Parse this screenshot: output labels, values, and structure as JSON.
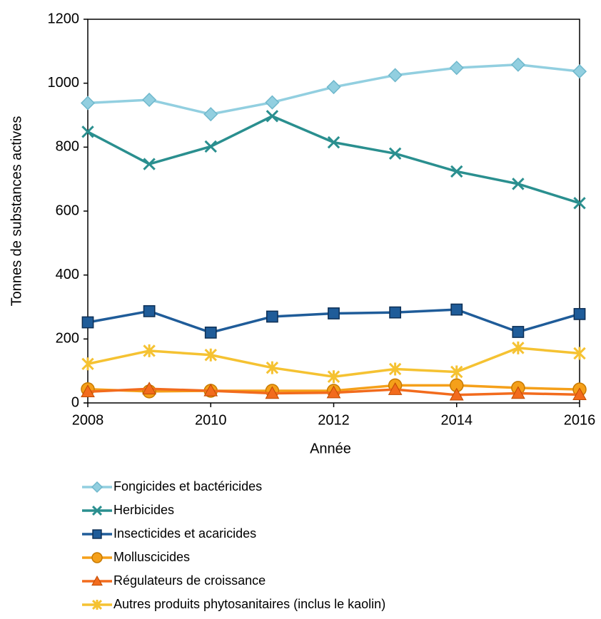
{
  "chart_data": {
    "type": "line",
    "x_label": "Année",
    "y_label": "Tonnes de substances actives",
    "x": [
      2008,
      2009,
      2010,
      2011,
      2012,
      2013,
      2014,
      2015,
      2016
    ],
    "xlim": [
      2008,
      2016
    ],
    "xticks": [
      2008,
      2010,
      2012,
      2014,
      2016
    ],
    "ylim": [
      0,
      1200
    ],
    "yticks": [
      0,
      200,
      400,
      600,
      800,
      1000,
      1200
    ],
    "legend": "bottom",
    "series": [
      {
        "name": "Fongicides et bactéricides",
        "color": "#92cfe0",
        "marker": "diamond",
        "values": [
          938,
          948,
          903,
          940,
          988,
          1025,
          1048,
          1058,
          1037
        ]
      },
      {
        "name": "Herbicides",
        "color": "#2a8f8f",
        "marker": "x",
        "values": [
          848,
          747,
          802,
          897,
          815,
          780,
          724,
          685,
          625
        ]
      },
      {
        "name": "Insecticides et acaricides",
        "color": "#1f5c99",
        "marker": "square",
        "values": [
          252,
          287,
          220,
          270,
          280,
          283,
          292,
          222,
          278
        ]
      },
      {
        "name": "Molluscicides",
        "color": "#f5a01a",
        "marker": "circle",
        "values": [
          43,
          36,
          38,
          38,
          38,
          55,
          55,
          47,
          42
        ]
      },
      {
        "name": "Régulateurs de croissance",
        "color": "#f26b1d",
        "marker": "triangle",
        "values": [
          35,
          44,
          38,
          30,
          32,
          42,
          25,
          30,
          26
        ]
      },
      {
        "name": "Autres produits phytosanitaires (inclus le kaolin)",
        "color": "#f5c232",
        "marker": "star",
        "values": [
          122,
          163,
          150,
          110,
          82,
          106,
          97,
          172,
          155
        ]
      }
    ]
  }
}
